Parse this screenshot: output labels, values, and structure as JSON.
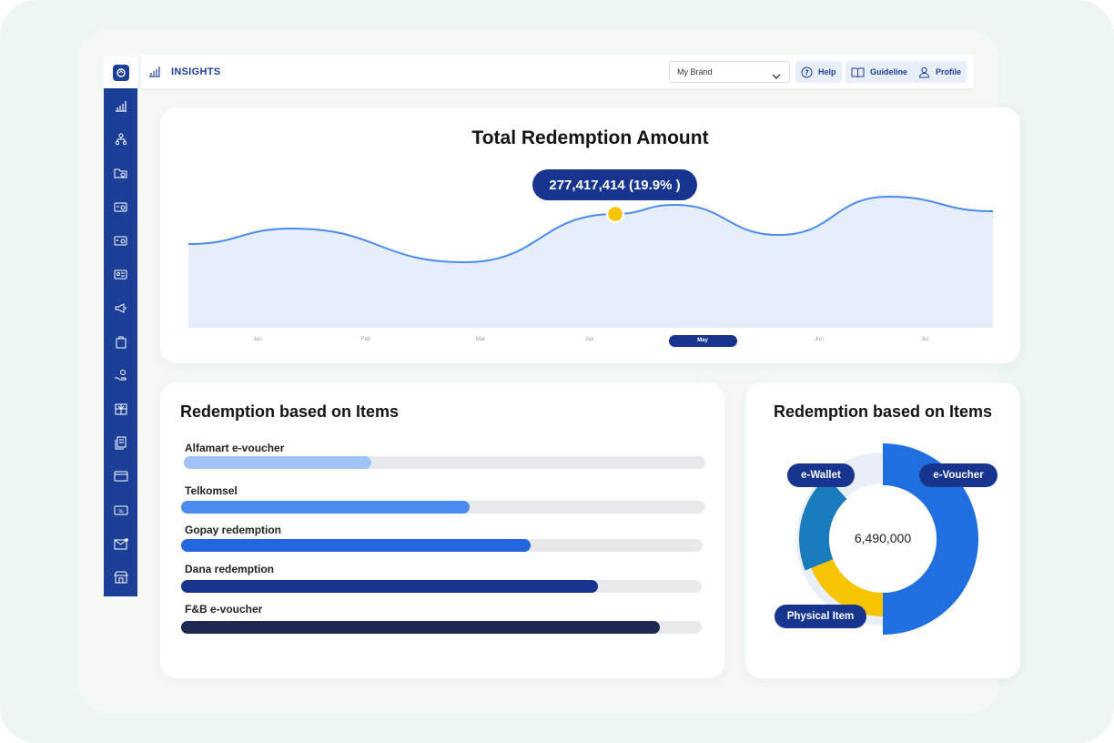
{
  "app": {
    "section_title": "INSIGHTS",
    "sidebar_icons": [
      "insights-icon",
      "org-chart-icon",
      "folder-icon",
      "voucher-card-icon",
      "voucher-settings-icon",
      "id-card-icon",
      "megaphone-icon",
      "bag-icon",
      "hand-coin-icon",
      "gift-box-icon",
      "document-icon",
      "credit-card-icon",
      "discount-icon",
      "mail-icon",
      "store-icon"
    ]
  },
  "header": {
    "brand_select": "My Brand",
    "help": "Help",
    "guideline": "Guideline",
    "profile": "Profile"
  },
  "colors": {
    "primary": "#1b3f96",
    "dark_blue": "#17348e",
    "line": "#4a8bf0",
    "area_fill": "#e6eefb",
    "highlight": "#f6c400"
  },
  "total_chart": {
    "title": "Total Redemption Amount",
    "tooltip": "277,417,414 (19.9% )",
    "months": [
      "Jan",
      "Feb",
      "Mar",
      "Apr",
      "May",
      "Jun",
      "Jul"
    ],
    "selected_month": "May"
  },
  "bars_card": {
    "title": "Redemption based on Items",
    "items": [
      {
        "label": "Alfamart e-voucher",
        "value": 0.36,
        "color": "#9fc3f7"
      },
      {
        "label": "Telkomsel",
        "value": 0.55,
        "color": "#4a8bf0"
      },
      {
        "label": "Gopay redemption",
        "value": 0.67,
        "color": "#2466dd"
      },
      {
        "label": "Dana redemption",
        "value": 0.8,
        "color": "#17348e"
      },
      {
        "label": "F&B e-voucher",
        "value": 0.92,
        "color": "#1c2950"
      }
    ]
  },
  "donut_card": {
    "title": "Redemption based on Items",
    "center_value": "6,490,000",
    "segments": [
      {
        "label": "e-Voucher",
        "value": 50,
        "color": "#1f6fe0"
      },
      {
        "label": "Physical Item",
        "value": 18,
        "color": "#f6c400"
      },
      {
        "label": "e-Wallet",
        "value": 20,
        "color": "#1a7bbd"
      }
    ]
  }
}
